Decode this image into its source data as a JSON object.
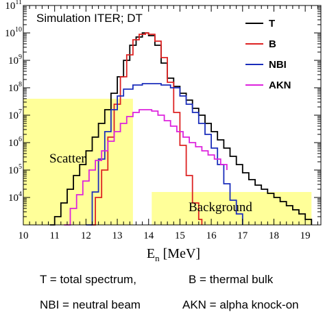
{
  "chart_data": {
    "type": "line",
    "title": "Simulation ITER; DT",
    "xlabel": "E_n [MeV]",
    "ylabel": "",
    "xlim": [
      10,
      19.5
    ],
    "ylim_log10": [
      3,
      11
    ],
    "y_scale": "log",
    "x_ticks": [
      "10",
      "11",
      "12",
      "13",
      "14",
      "15",
      "16",
      "17",
      "18",
      "19"
    ],
    "y_ticks": [
      {
        "base": "10",
        "exp": "4"
      },
      {
        "base": "10",
        "exp": "5"
      },
      {
        "base": "10",
        "exp": "6"
      },
      {
        "base": "10",
        "exp": "7"
      },
      {
        "base": "10",
        "exp": "8"
      },
      {
        "base": "10",
        "exp": "9"
      },
      {
        "base": "10",
        "exp": "10"
      },
      {
        "base": "10",
        "exp": "11"
      }
    ],
    "legend_position": "top-right",
    "regions": [
      {
        "label": "Scatter",
        "x": [
          10,
          13.5
        ],
        "y_log10": [
          3,
          7.6
        ],
        "color": "#ffff99"
      },
      {
        "label": "Background",
        "x": [
          14.1,
          19.2
        ],
        "y_log10": [
          3,
          4.2
        ],
        "color": "#ffff99"
      }
    ],
    "series": [
      {
        "name": "T",
        "color": "#000000",
        "x": [
          10.85,
          11.0,
          11.2,
          11.4,
          11.6,
          11.8,
          12.0,
          12.2,
          12.4,
          12.6,
          12.8,
          13.0,
          13.2,
          13.4,
          13.6,
          13.8,
          14.0,
          14.2,
          14.4,
          14.6,
          14.8,
          15.0,
          15.2,
          15.4,
          15.6,
          15.8,
          16.0,
          16.2,
          16.4,
          16.6,
          16.8,
          17.0,
          17.2,
          17.4,
          17.6,
          17.8,
          18.0,
          18.2,
          18.4,
          18.6,
          18.8,
          19.0,
          19.2
        ],
        "y_log10": [
          3.0,
          3.3,
          3.8,
          4.3,
          4.8,
          5.2,
          5.7,
          6.2,
          6.7,
          7.2,
          7.8,
          8.4,
          9.0,
          9.55,
          9.85,
          10.0,
          9.9,
          9.55,
          8.9,
          8.35,
          8.05,
          7.8,
          7.55,
          7.25,
          7.0,
          6.7,
          6.4,
          6.1,
          5.8,
          5.5,
          5.2,
          4.9,
          4.65,
          4.45,
          4.3,
          4.15,
          4.0,
          3.85,
          3.7,
          3.55,
          3.4,
          3.2,
          3.0
        ]
      },
      {
        "name": "B",
        "color": "#dd2222",
        "x": [
          12.15,
          12.3,
          12.5,
          12.7,
          12.9,
          13.1,
          13.3,
          13.5,
          13.7,
          13.9,
          14.0,
          14.2,
          14.4,
          14.6,
          14.8,
          15.0,
          15.2,
          15.4,
          15.6,
          15.7
        ],
        "y_log10": [
          3.0,
          4.0,
          5.0,
          6.2,
          7.4,
          8.4,
          9.2,
          9.75,
          9.95,
          10.0,
          9.95,
          9.7,
          9.1,
          8.2,
          7.1,
          5.9,
          4.8,
          3.8,
          3.2,
          3.0
        ]
      },
      {
        "name": "NBI",
        "color": "#1a2dbb",
        "x": [
          12.0,
          12.2,
          12.4,
          12.6,
          12.8,
          13.0,
          13.2,
          13.5,
          13.8,
          14.1,
          14.4,
          14.7,
          15.0,
          15.2,
          15.4,
          15.6,
          15.8,
          16.0,
          16.2,
          16.4,
          16.6,
          16.8,
          17.0
        ],
        "y_log10": [
          3.0,
          4.2,
          5.4,
          6.4,
          7.2,
          7.7,
          7.95,
          8.1,
          8.15,
          8.15,
          8.1,
          8.0,
          7.7,
          7.4,
          7.1,
          6.7,
          6.3,
          5.8,
          5.2,
          4.5,
          3.9,
          3.4,
          3.0
        ]
      },
      {
        "name": "AKN",
        "color": "#dd22dd",
        "x": [
          11.3,
          11.5,
          11.7,
          11.9,
          12.1,
          12.3,
          12.5,
          12.7,
          12.9,
          13.1,
          13.3,
          13.5,
          13.7,
          13.9,
          14.1,
          14.3,
          14.5,
          14.7,
          14.9,
          15.1,
          15.3,
          15.5,
          15.7,
          15.9,
          16.1,
          16.3,
          16.5
        ],
        "y_log10": [
          3.0,
          3.6,
          4.1,
          4.6,
          5.0,
          5.35,
          5.7,
          6.05,
          6.4,
          6.7,
          6.95,
          7.1,
          7.2,
          7.2,
          7.15,
          7.0,
          6.8,
          6.6,
          6.4,
          6.2,
          6.0,
          5.85,
          5.7,
          5.55,
          5.4,
          5.2,
          5.0
        ]
      }
    ]
  },
  "captions": {
    "t_def": "T = total spectrum,",
    "b_def": "B = thermal bulk",
    "nbi_def": "NBI = neutral beam",
    "akn_def": "AKN = alpha knock-on"
  }
}
